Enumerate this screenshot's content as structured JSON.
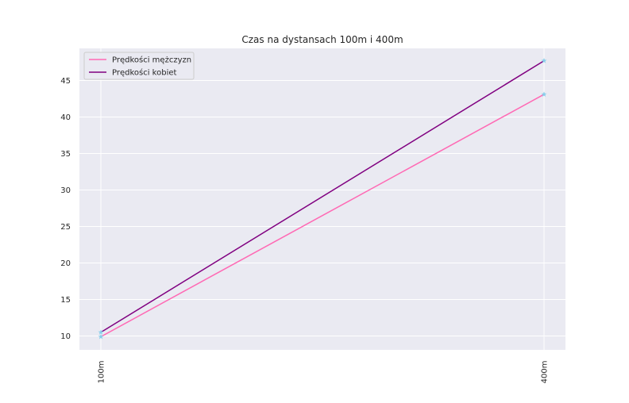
{
  "chart_data": {
    "type": "line",
    "title": "Czas na dystansach 100m i 400m",
    "xlabel": "",
    "ylabel": "",
    "categories": [
      "100m",
      "400m"
    ],
    "ylim": [
      8.1,
      49.4
    ],
    "yticks": [
      10,
      15,
      20,
      25,
      30,
      35,
      40,
      45
    ],
    "grid": true,
    "legend_position": "top-left",
    "background": "#eaeaf2",
    "series": [
      {
        "name": "Prędkości mężczyzn",
        "values": [
          9.9,
          43.1
        ],
        "color": "#ff69b4"
      },
      {
        "name": "Prędkości kobiet",
        "values": [
          10.5,
          47.7
        ],
        "color": "#800080"
      }
    ],
    "marker_color": "#87ceeb"
  }
}
